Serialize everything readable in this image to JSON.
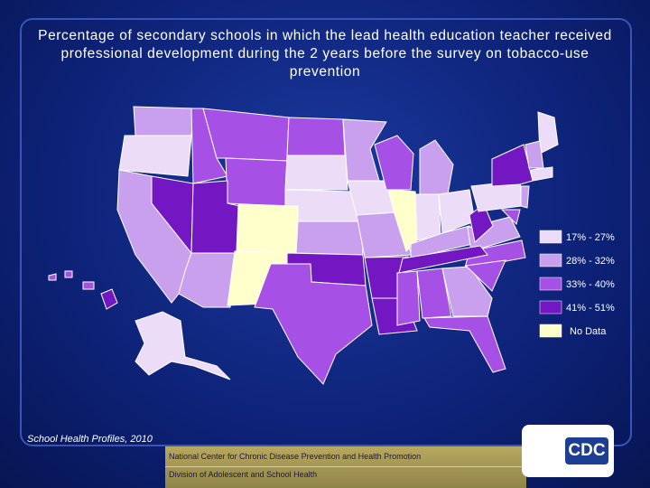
{
  "title": "Percentage of secondary schools in which the lead health education teacher received professional development during the 2 years before the survey on tobacco-use prevention",
  "legend": [
    {
      "label": "17% - 27%",
      "color": "#ecdcf7"
    },
    {
      "label": "28% - 32%",
      "color": "#c9a0ee"
    },
    {
      "label": "33% - 40%",
      "color": "#a650e6"
    },
    {
      "label": "41% - 51%",
      "color": "#7317c2"
    },
    {
      "label": "No Data",
      "color": "#ffffcc"
    }
  ],
  "source": "School Health Profiles, 2010",
  "footer": [
    "National Center for Chronic Disease Prevention and Health Promotion",
    "Division of Adolescent and School Health"
  ],
  "logo": "CDC"
}
